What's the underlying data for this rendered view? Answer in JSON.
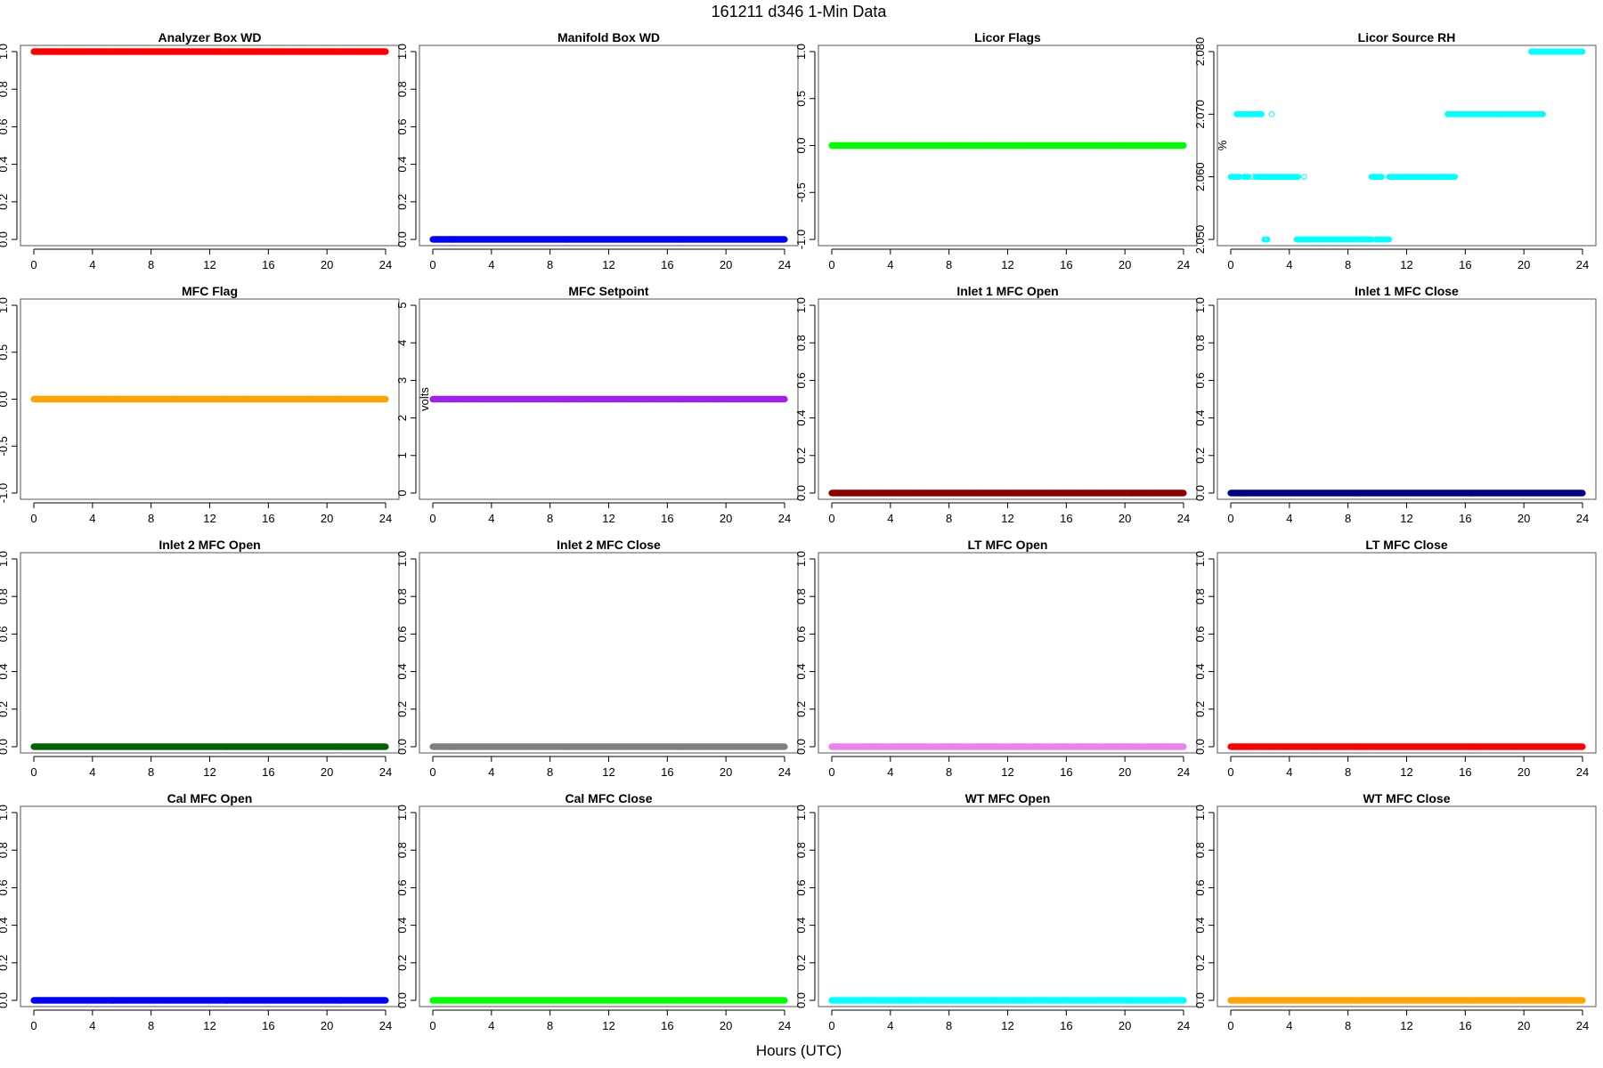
{
  "figure": {
    "title": "161211   d346   1-Min Data",
    "xlabel": "Hours (UTC)"
  },
  "chart_data": [
    {
      "type": "scatter",
      "title": "Analyzer Box WD",
      "ylabel": "",
      "color": "#ff0000",
      "point_style": "filled",
      "xlim": [
        0,
        24
      ],
      "ylim": [
        0,
        1
      ],
      "x_ticks": [
        0,
        4,
        8,
        12,
        16,
        20,
        24
      ],
      "y_ticks": [
        "0.0",
        "0.2",
        "0.4",
        "0.6",
        "0.8",
        "1.0"
      ],
      "segments": [
        {
          "x": [
            0,
            24
          ],
          "y": 1
        }
      ]
    },
    {
      "type": "scatter",
      "title": "Manifold Box WD",
      "ylabel": "",
      "color": "#0000ff",
      "point_style": "filled",
      "xlim": [
        0,
        24
      ],
      "ylim": [
        0,
        1
      ],
      "x_ticks": [
        0,
        4,
        8,
        12,
        16,
        20,
        24
      ],
      "y_ticks": [
        "0.0",
        "0.2",
        "0.4",
        "0.6",
        "0.8",
        "1.0"
      ],
      "segments": [
        {
          "x": [
            0,
            24
          ],
          "y": 0
        }
      ]
    },
    {
      "type": "scatter",
      "title": "Licor Flags",
      "ylabel": "",
      "color": "#00ff00",
      "point_style": "filled",
      "xlim": [
        0,
        24
      ],
      "ylim": [
        -1,
        1
      ],
      "x_ticks": [
        0,
        4,
        8,
        12,
        16,
        20,
        24
      ],
      "y_ticks": [
        "-1.0",
        "-0.5",
        "0.0",
        "0.5",
        "1.0"
      ],
      "segments": [
        {
          "x": [
            0,
            24
          ],
          "y": 0
        }
      ]
    },
    {
      "type": "scatter",
      "title": "Licor Source RH",
      "ylabel": "%",
      "color": "#00ffff",
      "point_style": "open",
      "xlim": [
        0,
        24
      ],
      "ylim": [
        2.05,
        2.08
      ],
      "x_ticks": [
        0,
        4,
        8,
        12,
        16,
        20,
        24
      ],
      "y_ticks": [
        "2.050",
        "2.060",
        "2.070",
        "2.080"
      ],
      "segments": [
        {
          "x": [
            0.0,
            0.6
          ],
          "y": 2.06
        },
        {
          "x": [
            0.9,
            1.2
          ],
          "y": 2.06
        },
        {
          "x": [
            1.5,
            1.5
          ],
          "y": 2.06
        },
        {
          "x": [
            1.7,
            4.6
          ],
          "y": 2.06
        },
        {
          "x": [
            5.0,
            5.0
          ],
          "y": 2.06
        },
        {
          "x": [
            0.4,
            2.1
          ],
          "y": 2.07
        },
        {
          "x": [
            2.8,
            2.8
          ],
          "y": 2.07
        },
        {
          "x": [
            2.3,
            2.5
          ],
          "y": 2.05
        },
        {
          "x": [
            4.5,
            9.6
          ],
          "y": 2.05
        },
        {
          "x": [
            9.9,
            10.8
          ],
          "y": 2.05
        },
        {
          "x": [
            9.6,
            10.3
          ],
          "y": 2.06
        },
        {
          "x": [
            10.8,
            15.3
          ],
          "y": 2.06
        },
        {
          "x": [
            14.8,
            21.3
          ],
          "y": 2.07
        },
        {
          "x": [
            20.5,
            24.0
          ],
          "y": 2.08
        }
      ]
    },
    {
      "type": "scatter",
      "title": "MFC Flag",
      "ylabel": "",
      "color": "#ffa500",
      "point_style": "filled",
      "xlim": [
        0,
        24
      ],
      "ylim": [
        -1,
        1
      ],
      "x_ticks": [
        0,
        4,
        8,
        12,
        16,
        20,
        24
      ],
      "y_ticks": [
        "-1.0",
        "-0.5",
        "0.0",
        "0.5",
        "1.0"
      ],
      "segments": [
        {
          "x": [
            0,
            24
          ],
          "y": 0
        }
      ]
    },
    {
      "type": "scatter",
      "title": "MFC Setpoint",
      "ylabel": "volts",
      "color": "#a020f0",
      "point_style": "filled",
      "xlim": [
        0,
        24
      ],
      "ylim": [
        0,
        5
      ],
      "x_ticks": [
        0,
        4,
        8,
        12,
        16,
        20,
        24
      ],
      "y_ticks": [
        "0",
        "1",
        "2",
        "3",
        "4",
        "5"
      ],
      "segments": [
        {
          "x": [
            0,
            24
          ],
          "y": 2.5
        }
      ]
    },
    {
      "type": "scatter",
      "title": "Inlet 1 MFC Open",
      "ylabel": "",
      "color": "#8b0000",
      "point_style": "filled",
      "xlim": [
        0,
        24
      ],
      "ylim": [
        0,
        1
      ],
      "x_ticks": [
        0,
        4,
        8,
        12,
        16,
        20,
        24
      ],
      "y_ticks": [
        "0.0",
        "0.2",
        "0.4",
        "0.6",
        "0.8",
        "1.0"
      ],
      "segments": [
        {
          "x": [
            0,
            24
          ],
          "y": 0
        }
      ]
    },
    {
      "type": "scatter",
      "title": "Inlet 1 MFC Close",
      "ylabel": "",
      "color": "#000080",
      "point_style": "filled",
      "xlim": [
        0,
        24
      ],
      "ylim": [
        0,
        1
      ],
      "x_ticks": [
        0,
        4,
        8,
        12,
        16,
        20,
        24
      ],
      "y_ticks": [
        "0.0",
        "0.2",
        "0.4",
        "0.6",
        "0.8",
        "1.0"
      ],
      "segments": [
        {
          "x": [
            0,
            24
          ],
          "y": 0
        }
      ]
    },
    {
      "type": "scatter",
      "title": "Inlet 2 MFC Open",
      "ylabel": "",
      "color": "#006400",
      "point_style": "filled",
      "xlim": [
        0,
        24
      ],
      "ylim": [
        0,
        1
      ],
      "x_ticks": [
        0,
        4,
        8,
        12,
        16,
        20,
        24
      ],
      "y_ticks": [
        "0.0",
        "0.2",
        "0.4",
        "0.6",
        "0.8",
        "1.0"
      ],
      "segments": [
        {
          "x": [
            0,
            24
          ],
          "y": 0
        }
      ]
    },
    {
      "type": "scatter",
      "title": "Inlet 2 MFC Close",
      "ylabel": "",
      "color": "#808080",
      "point_style": "filled",
      "xlim": [
        0,
        24
      ],
      "ylim": [
        0,
        1
      ],
      "x_ticks": [
        0,
        4,
        8,
        12,
        16,
        20,
        24
      ],
      "y_ticks": [
        "0.0",
        "0.2",
        "0.4",
        "0.6",
        "0.8",
        "1.0"
      ],
      "segments": [
        {
          "x": [
            0,
            24
          ],
          "y": 0
        }
      ]
    },
    {
      "type": "scatter",
      "title": "LT MFC Open",
      "ylabel": "",
      "color": "#ee82ee",
      "point_style": "filled",
      "xlim": [
        0,
        24
      ],
      "ylim": [
        0,
        1
      ],
      "x_ticks": [
        0,
        4,
        8,
        12,
        16,
        20,
        24
      ],
      "y_ticks": [
        "0.0",
        "0.2",
        "0.4",
        "0.6",
        "0.8",
        "1.0"
      ],
      "segments": [
        {
          "x": [
            0,
            24
          ],
          "y": 0
        }
      ]
    },
    {
      "type": "scatter",
      "title": "LT MFC Close",
      "ylabel": "",
      "color": "#ff0000",
      "point_style": "filled",
      "xlim": [
        0,
        24
      ],
      "ylim": [
        0,
        1
      ],
      "x_ticks": [
        0,
        4,
        8,
        12,
        16,
        20,
        24
      ],
      "y_ticks": [
        "0.0",
        "0.2",
        "0.4",
        "0.6",
        "0.8",
        "1.0"
      ],
      "segments": [
        {
          "x": [
            0,
            24
          ],
          "y": 0
        }
      ]
    },
    {
      "type": "scatter",
      "title": "Cal MFC Open",
      "ylabel": "",
      "color": "#0000ff",
      "point_style": "filled",
      "xlim": [
        0,
        24
      ],
      "ylim": [
        0,
        1
      ],
      "x_ticks": [
        0,
        4,
        8,
        12,
        16,
        20,
        24
      ],
      "y_ticks": [
        "0.0",
        "0.2",
        "0.4",
        "0.6",
        "0.8",
        "1.0"
      ],
      "segments": [
        {
          "x": [
            0,
            24
          ],
          "y": 0
        }
      ]
    },
    {
      "type": "scatter",
      "title": "Cal MFC Close",
      "ylabel": "",
      "color": "#00ff00",
      "point_style": "filled",
      "xlim": [
        0,
        24
      ],
      "ylim": [
        0,
        1
      ],
      "x_ticks": [
        0,
        4,
        8,
        12,
        16,
        20,
        24
      ],
      "y_ticks": [
        "0.0",
        "0.2",
        "0.4",
        "0.6",
        "0.8",
        "1.0"
      ],
      "segments": [
        {
          "x": [
            0,
            24
          ],
          "y": 0
        }
      ]
    },
    {
      "type": "scatter",
      "title": "WT MFC Open",
      "ylabel": "",
      "color": "#00ffff",
      "point_style": "filled",
      "xlim": [
        0,
        24
      ],
      "ylim": [
        0,
        1
      ],
      "x_ticks": [
        0,
        4,
        8,
        12,
        16,
        20,
        24
      ],
      "y_ticks": [
        "0.0",
        "0.2",
        "0.4",
        "0.6",
        "0.8",
        "1.0"
      ],
      "segments": [
        {
          "x": [
            0,
            24
          ],
          "y": 0
        }
      ]
    },
    {
      "type": "scatter",
      "title": "WT MFC Close",
      "ylabel": "",
      "color": "#ffa500",
      "point_style": "filled",
      "xlim": [
        0,
        24
      ],
      "ylim": [
        0,
        1
      ],
      "x_ticks": [
        0,
        4,
        8,
        12,
        16,
        20,
        24
      ],
      "y_ticks": [
        "0.0",
        "0.2",
        "0.4",
        "0.6",
        "0.8",
        "1.0"
      ],
      "segments": [
        {
          "x": [
            0,
            24
          ],
          "y": 0
        }
      ]
    }
  ]
}
